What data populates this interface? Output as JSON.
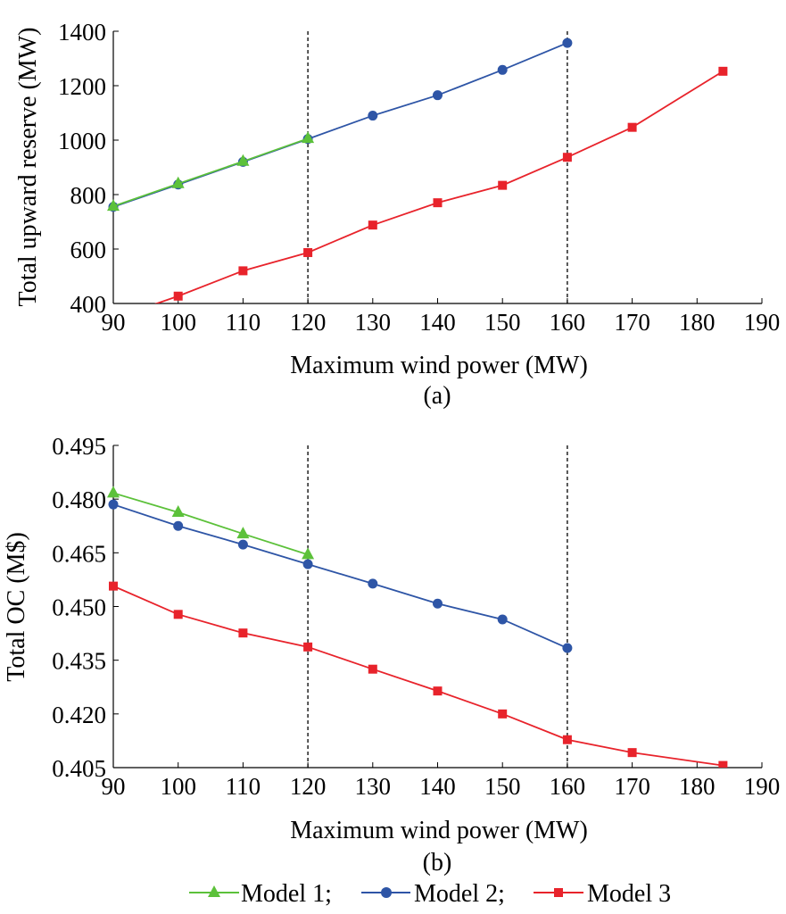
{
  "chart_data": [
    {
      "type": "line",
      "panel_label": "(a)",
      "xlabel": "Maximum wind power (MW)",
      "ylabel": "Total upward reserve (MW)",
      "xlim": [
        90,
        190
      ],
      "ylim": [
        400,
        1400
      ],
      "xticks": [
        90,
        100,
        110,
        120,
        130,
        140,
        150,
        160,
        170,
        180,
        190
      ],
      "yticks": [
        400,
        600,
        800,
        1000,
        1200,
        1400
      ],
      "ytick_labels": [
        "400",
        "600",
        "800",
        "1000",
        "1200",
        "1400"
      ],
      "reference_lines_x": [
        120,
        160
      ],
      "grid": false,
      "series": [
        {
          "name": "Model 1",
          "color": "#5cc13a",
          "marker": "triangle",
          "x": [
            90,
            100,
            110,
            120
          ],
          "y": [
            757,
            840,
            922,
            1006
          ]
        },
        {
          "name": "Model 2",
          "color": "#2e55a6",
          "marker": "circle",
          "x": [
            90,
            100,
            110,
            120,
            130,
            140,
            150,
            160
          ],
          "y": [
            755,
            837,
            920,
            1004,
            1090,
            1165,
            1258,
            1357
          ]
        },
        {
          "name": "Model 3",
          "color": "#e8232b",
          "marker": "square",
          "x": [
            90,
            100,
            110,
            120,
            130,
            140,
            150,
            160,
            170,
            184
          ],
          "y": [
            345,
            427,
            520,
            587,
            688,
            770,
            834,
            937,
            1047,
            1253
          ]
        }
      ]
    },
    {
      "type": "line",
      "panel_label": "(b)",
      "xlabel": "Maximum wind power (MW)",
      "ylabel": "Total OC (M$)",
      "xlim": [
        90,
        190
      ],
      "ylim": [
        0.405,
        0.495
      ],
      "xticks": [
        90,
        100,
        110,
        120,
        130,
        140,
        150,
        160,
        170,
        180,
        190
      ],
      "yticks": [
        0.405,
        0.42,
        0.435,
        0.45,
        0.465,
        0.48,
        0.495
      ],
      "ytick_labels": [
        "0.405",
        "0.420",
        "0.435",
        "0.450",
        "0.465",
        "0.480",
        "0.495"
      ],
      "reference_lines_x": [
        120,
        160
      ],
      "grid": false,
      "series": [
        {
          "name": "Model 1",
          "color": "#5cc13a",
          "marker": "triangle",
          "x": [
            90,
            100,
            110,
            120
          ],
          "y": [
            0.4817,
            0.4763,
            0.4703,
            0.4645
          ]
        },
        {
          "name": "Model 2",
          "color": "#2e55a6",
          "marker": "circle",
          "x": [
            90,
            100,
            110,
            120,
            130,
            140,
            150,
            160
          ],
          "y": [
            0.4785,
            0.4725,
            0.4673,
            0.4618,
            0.4564,
            0.4508,
            0.4464,
            0.4384
          ]
        },
        {
          "name": "Model 3",
          "color": "#e8232b",
          "marker": "square",
          "x": [
            90,
            100,
            110,
            120,
            130,
            140,
            150,
            160,
            170,
            184
          ],
          "y": [
            0.4557,
            0.4478,
            0.4426,
            0.4387,
            0.4325,
            0.4264,
            0.42,
            0.4128,
            0.4092,
            0.4056
          ]
        }
      ]
    }
  ],
  "legend": {
    "placement": "bottom-center",
    "items": [
      {
        "label": "Model 1;",
        "color": "#5cc13a",
        "marker": "triangle"
      },
      {
        "label": "Model 2;",
        "color": "#2e55a6",
        "marker": "circle"
      },
      {
        "label": "Model 3",
        "color": "#e8232b",
        "marker": "square"
      }
    ]
  }
}
